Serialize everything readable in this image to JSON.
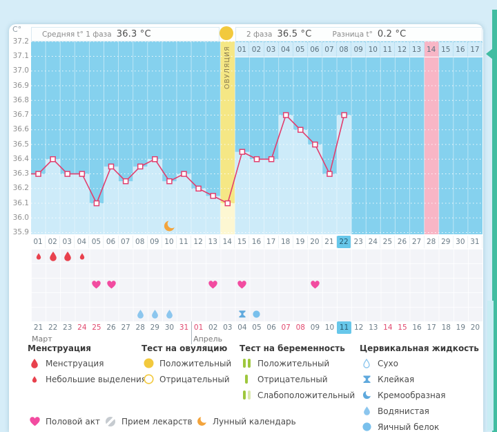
{
  "header": {
    "y_unit": "C°",
    "avg_phase1_label": "Средняя t° 1 фаза",
    "avg_phase1_value": "36.3 °C",
    "phase2_label": "2 фаза",
    "phase2_value": "36.5 °C",
    "diff_label": "Разница t°",
    "diff_value": "0.2 °C"
  },
  "chart_data": {
    "type": "line",
    "ylabel": "C°",
    "ylim": [
      35.9,
      37.2
    ],
    "yticks": [
      37.2,
      37.1,
      37.0,
      36.9,
      36.8,
      36.7,
      36.6,
      36.5,
      36.4,
      36.3,
      36.2,
      36.1,
      36.0,
      35.9
    ],
    "cycle_days": [
      "01",
      "02",
      "03",
      "04",
      "05",
      "06",
      "07",
      "08",
      "09",
      "10",
      "11",
      "12",
      "13",
      "14",
      "15",
      "16",
      "17",
      "18",
      "19",
      "20",
      "21",
      "22",
      "23",
      "24",
      "25",
      "26",
      "27",
      "28",
      "29",
      "30",
      "31"
    ],
    "temperatures": [
      36.3,
      36.4,
      36.3,
      36.3,
      36.1,
      36.35,
      36.25,
      36.35,
      36.4,
      36.25,
      36.3,
      36.2,
      36.15,
      36.1,
      36.45,
      36.4,
      36.4,
      36.7,
      36.6,
      36.5,
      36.3,
      36.7,
      null,
      null,
      null,
      null,
      null,
      null,
      null,
      null,
      null
    ],
    "ovulation_day": 14,
    "ovulation_label": "ОВУЛЯЦИЯ",
    "dpo_days": [
      "01",
      "02",
      "03",
      "04",
      "05",
      "06",
      "07",
      "08",
      "09",
      "10",
      "11",
      "12",
      "13",
      "14",
      "15",
      "16",
      "17"
    ],
    "expected_period_dpo": 14,
    "today_cycle_day": 22,
    "moon_day": 10,
    "events": {
      "menstruation": [
        {
          "day": 1,
          "size": "small"
        },
        {
          "day": 2,
          "size": "large"
        },
        {
          "day": 3,
          "size": "large"
        },
        {
          "day": 4,
          "size": "small"
        }
      ],
      "intercourse_days": [
        5,
        6,
        13,
        15,
        20
      ],
      "cervical_fluid": [
        {
          "day": 8,
          "type": "watery"
        },
        {
          "day": 9,
          "type": "watery"
        },
        {
          "day": 10,
          "type": "watery"
        },
        {
          "day": 15,
          "type": "sticky"
        },
        {
          "day": 16,
          "type": "eggwhite"
        }
      ]
    },
    "calendar": {
      "dates": [
        "21",
        "22",
        "23",
        "24",
        "25",
        "26",
        "27",
        "28",
        "29",
        "30",
        "31",
        "01",
        "02",
        "03",
        "04",
        "05",
        "06",
        "07",
        "08",
        "09",
        "10",
        "11",
        "12",
        "13",
        "14",
        "15",
        "16",
        "17",
        "18",
        "19",
        "20"
      ],
      "weekend_indices": [
        3,
        4,
        10,
        11,
        17,
        18,
        24,
        25
      ],
      "today_index": 21,
      "month1": "Март",
      "month2": "Апрель",
      "month2_start_index": 11
    }
  },
  "legend": {
    "menstruation": {
      "title": "Менструация",
      "items": [
        {
          "label": "Менструация"
        },
        {
          "label": "Небольшие выделения"
        }
      ]
    },
    "ovulation_test": {
      "title": "Тест на овуляцию",
      "items": [
        {
          "label": "Положительный"
        },
        {
          "label": "Отрицательный"
        }
      ]
    },
    "pregnancy_test": {
      "title": "Тест на беременность",
      "items": [
        {
          "label": "Положительный"
        },
        {
          "label": "Отрицательный"
        },
        {
          "label": "Слабоположительный"
        }
      ]
    },
    "cervical_fluid": {
      "title": "Цервикальная жидкость",
      "items": [
        {
          "label": "Сухо"
        },
        {
          "label": "Клейкая"
        },
        {
          "label": "Кремообразная"
        },
        {
          "label": "Водянистая"
        },
        {
          "label": "Яичный белок"
        }
      ]
    },
    "extra": [
      {
        "label": "Половой акт"
      },
      {
        "label": "Прием лекарств"
      },
      {
        "label": "Лунный календарь"
      }
    ]
  },
  "colors": {
    "line": "#e23d6d",
    "chart_bg": "#85d1ee",
    "area_fill": "#cdebf9",
    "ovulation_column": "#f5e785",
    "ovulation_fill": "#fdf7d2",
    "expected_period_column": "#f8b6c6",
    "day_cell_bg": "#d2ecf9",
    "today_highlight": "#67c7ea",
    "menstruation": "#e8414d",
    "intercourse_heart": "#f24ba0",
    "ovulation_test": "#f2c93d",
    "pregnancy_test": "#9ec73d",
    "pregnancy_test_pale": "#d9e8ab",
    "cervical_blue": "#5fa9dd",
    "cervical_mid": "#79c0ec",
    "cervical_light": "#8cc6ee",
    "moon": "#f3a43c",
    "weekend_red": "#e0476d",
    "medication_gray": "#c9ced3"
  }
}
